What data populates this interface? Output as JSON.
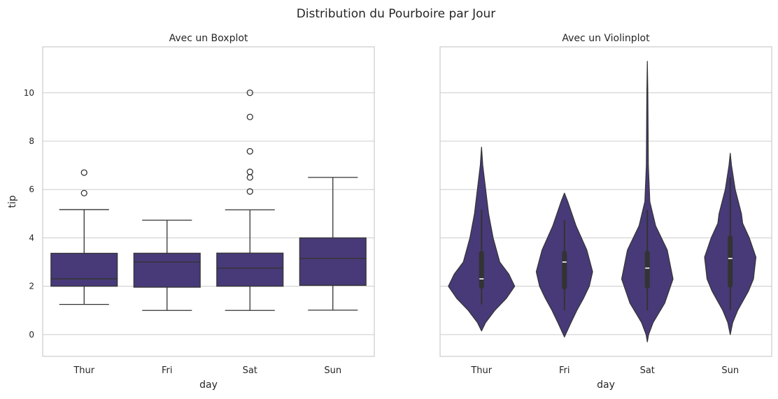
{
  "suptitle": "Distribution du Pourboire par Jour",
  "fill_color": "#483a78",
  "line_color": "#333333",
  "grid": true,
  "chart_data": [
    {
      "type": "box",
      "title": "Avec un Boxplot",
      "xlabel": "day",
      "ylabel": "tip",
      "ylim": [
        -0.9,
        11.9
      ],
      "yticks": [
        0,
        2,
        4,
        6,
        8,
        10
      ],
      "categories": [
        "Thur",
        "Fri",
        "Sat",
        "Sun"
      ],
      "boxes": [
        {
          "whislo": 1.25,
          "q1": 2.0,
          "med": 2.305,
          "q3": 3.3625,
          "whishi": 5.17,
          "fliers": [
            5.85,
            6.7
          ]
        },
        {
          "whislo": 1.0,
          "q1": 1.96,
          "med": 3.0,
          "q3": 3.365,
          "whishi": 4.73,
          "fliers": []
        },
        {
          "whislo": 1.0,
          "q1": 2.0,
          "med": 2.75,
          "q3": 3.37,
          "whishi": 5.16,
          "fliers": [
            5.92,
            6.5,
            6.73,
            7.58,
            9.0,
            10.0
          ]
        },
        {
          "whislo": 1.01,
          "q1": 2.0375,
          "med": 3.15,
          "q3": 4.0,
          "whishi": 6.5,
          "fliers": []
        }
      ]
    },
    {
      "type": "violin",
      "title": "Avec un Violinplot",
      "xlabel": "day",
      "ylabel": "",
      "ylim": [
        -0.9,
        11.9
      ],
      "categories": [
        "Thur",
        "Fri",
        "Sat",
        "Sun"
      ],
      "violins": [
        {
          "density": [
            [
              0.15,
              0
            ],
            [
              0.5,
              0.05
            ],
            [
              1.0,
              0.16
            ],
            [
              1.5,
              0.3
            ],
            [
              2.0,
              0.4
            ],
            [
              2.5,
              0.33
            ],
            [
              3.0,
              0.22
            ],
            [
              4.0,
              0.14
            ],
            [
              5.0,
              0.085
            ],
            [
              6.0,
              0.05
            ],
            [
              7.0,
              0.015
            ],
            [
              7.75,
              0
            ]
          ],
          "q1": 2.0,
          "med": 2.305,
          "q3": 3.3625,
          "whislo": 1.25,
          "whishi": 5.17
        },
        {
          "density": [
            [
              -0.1,
              0
            ],
            [
              0.5,
              0.08
            ],
            [
              1.0,
              0.15
            ],
            [
              1.5,
              0.23
            ],
            [
              2.0,
              0.3
            ],
            [
              2.6,
              0.34
            ],
            [
              3.5,
              0.27
            ],
            [
              4.5,
              0.14
            ],
            [
              5.5,
              0.04
            ],
            [
              5.85,
              0
            ]
          ],
          "q1": 1.96,
          "med": 3.0,
          "q3": 3.365,
          "whislo": 1.0,
          "whishi": 4.73
        },
        {
          "density": [
            [
              -0.3,
              0
            ],
            [
              0,
              0.015
            ],
            [
              0.5,
              0.07
            ],
            [
              1.3,
              0.21
            ],
            [
              2.3,
              0.31
            ],
            [
              3.5,
              0.24
            ],
            [
              4.5,
              0.1
            ],
            [
              5.5,
              0.03
            ],
            [
              7.0,
              0.012
            ],
            [
              10.0,
              0.006
            ],
            [
              11.3,
              0
            ]
          ],
          "q1": 2.0,
          "med": 2.75,
          "q3": 3.37,
          "whislo": 1.0,
          "whishi": 5.16
        },
        {
          "density": [
            [
              0,
              0
            ],
            [
              0.5,
              0.03
            ],
            [
              1.0,
              0.09
            ],
            [
              1.8,
              0.22
            ],
            [
              2.3,
              0.28
            ],
            [
              3.2,
              0.31
            ],
            [
              4.0,
              0.23
            ],
            [
              4.6,
              0.15
            ],
            [
              5.0,
              0.135
            ],
            [
              6.0,
              0.06
            ],
            [
              7.0,
              0.015
            ],
            [
              7.5,
              0
            ]
          ],
          "q1": 2.0375,
          "med": 3.15,
          "q3": 4.0,
          "whislo": 1.01,
          "whishi": 6.5
        }
      ]
    }
  ]
}
